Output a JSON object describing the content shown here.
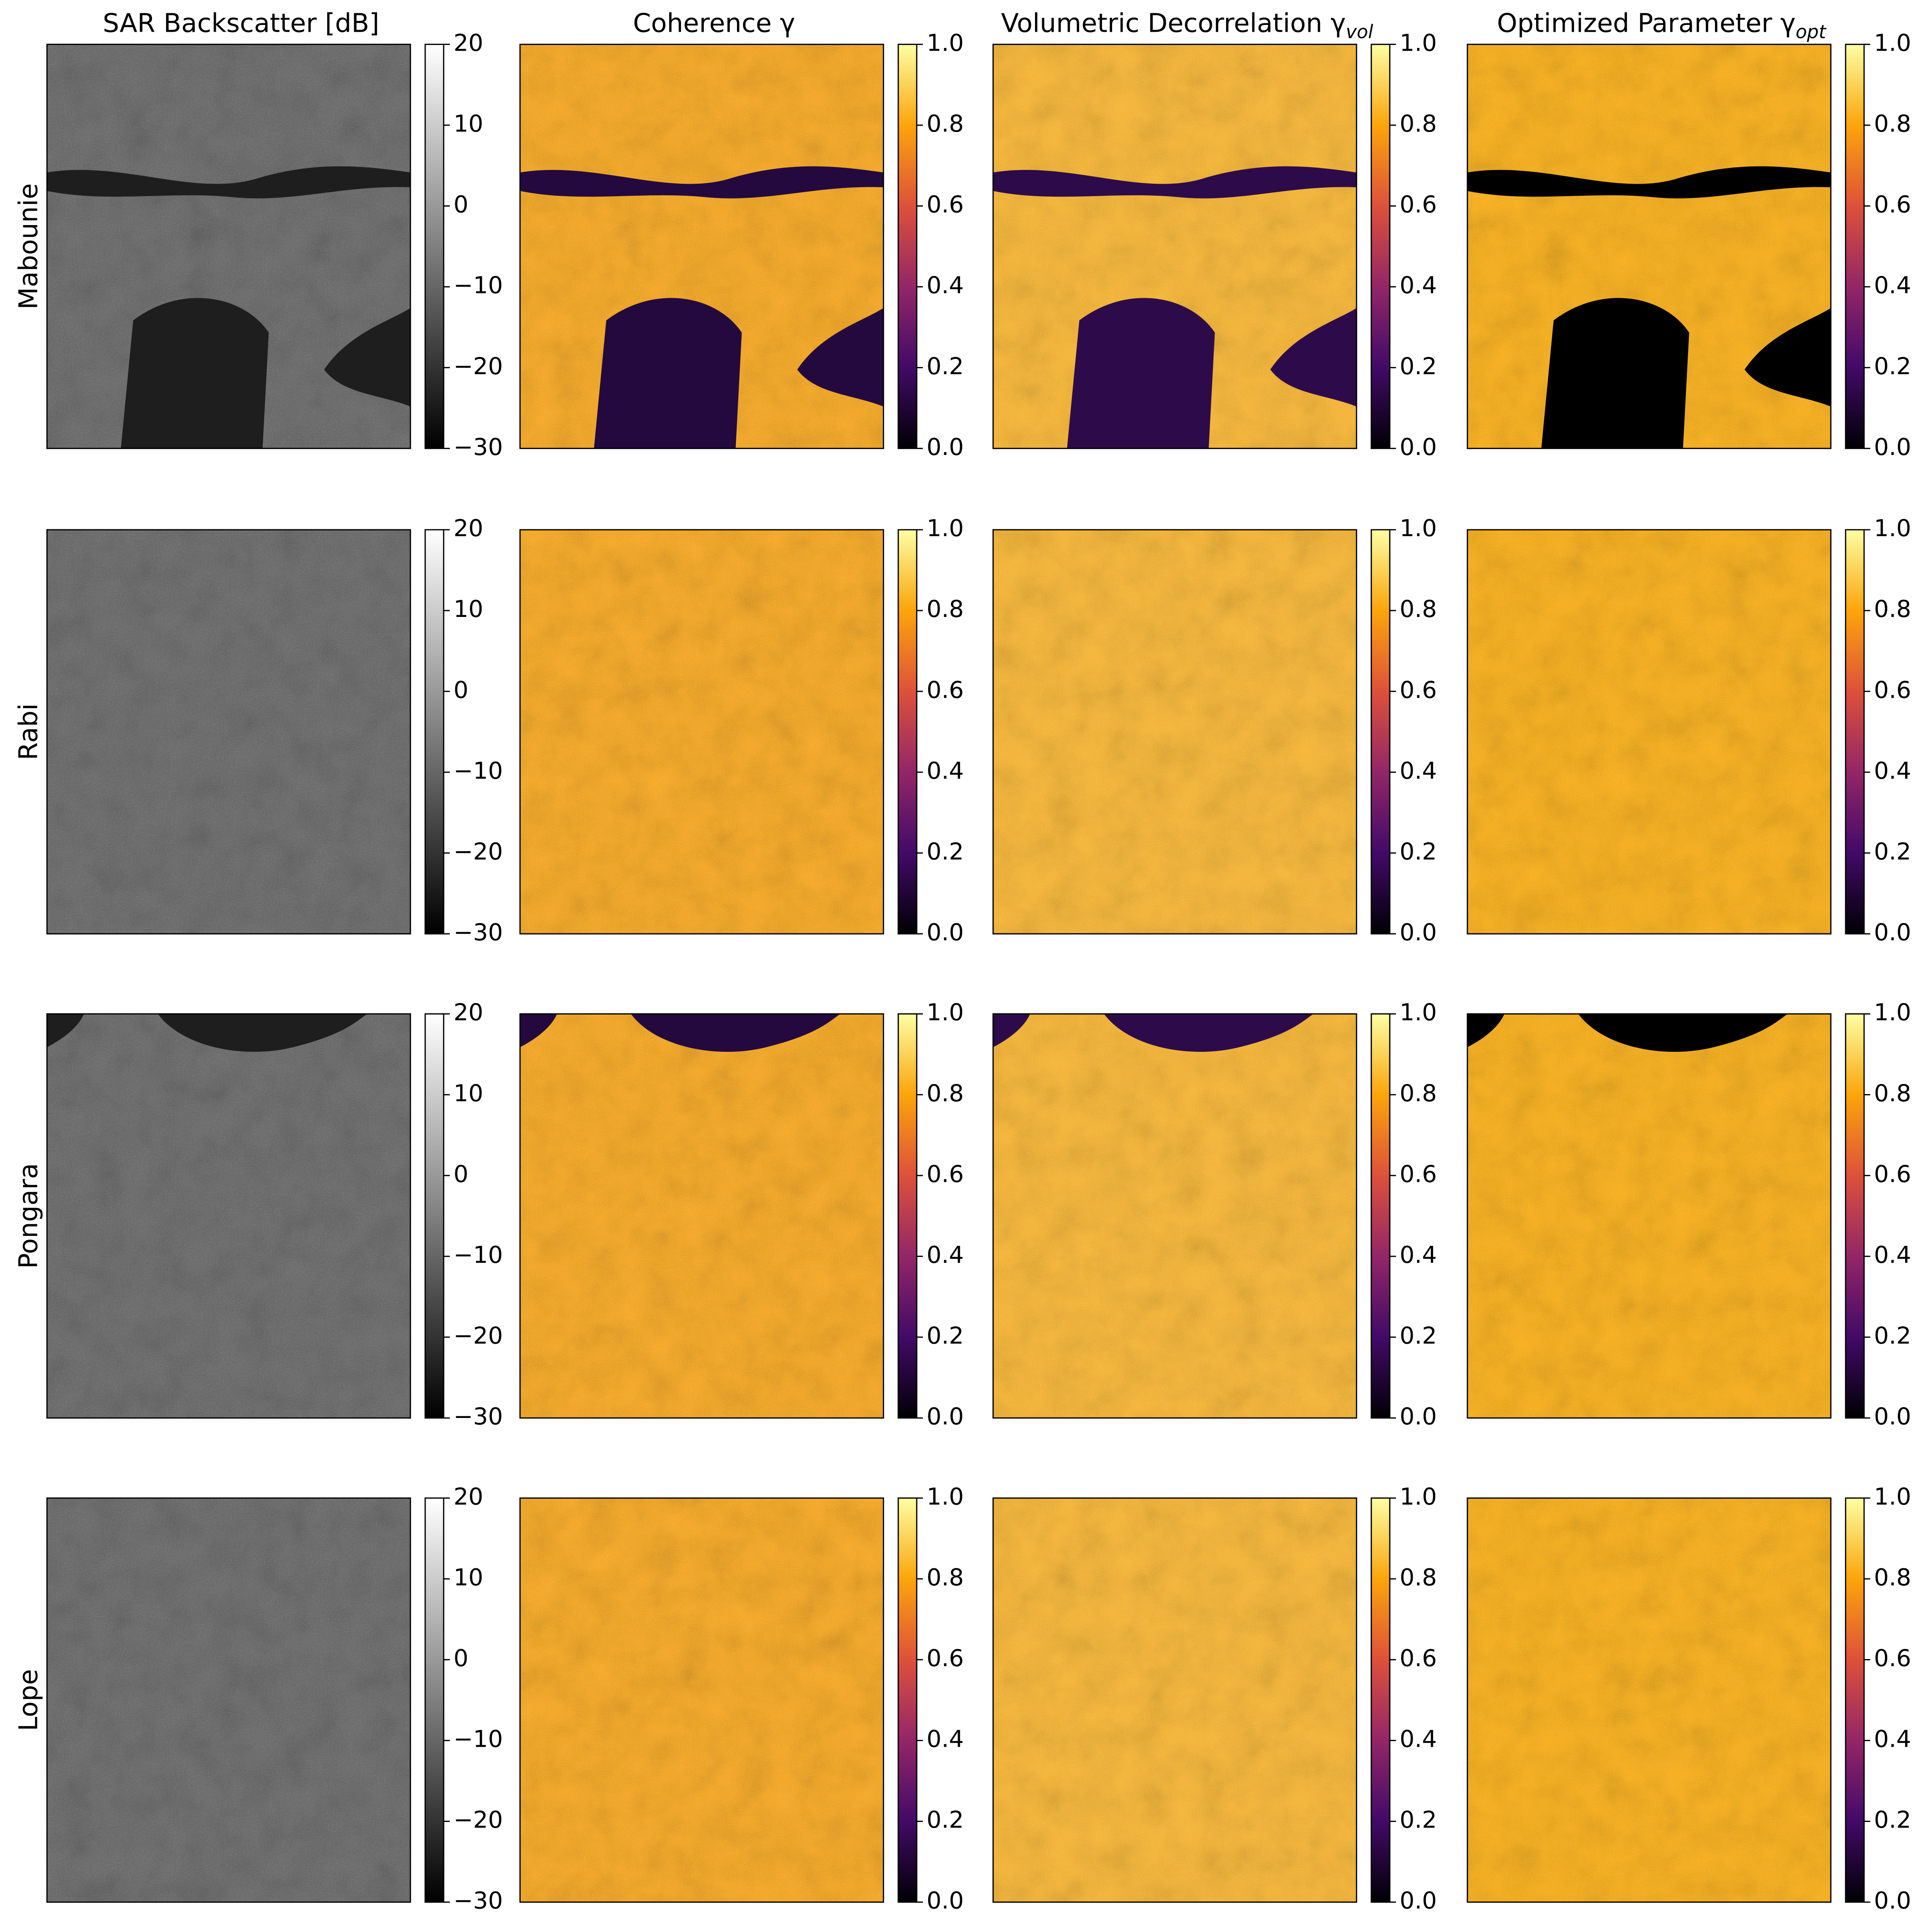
{
  "figure": {
    "rows": [
      "Mabounie",
      "Rabi",
      "Pongara",
      "Lope"
    ],
    "columns": [
      {
        "title": "SAR Backscatter [dB]",
        "base": "#6a6a6a",
        "dark": "#1e1e1e",
        "colorbar": {
          "colormap": [
            "#000000",
            "#ffffff"
          ],
          "lim": [
            -30,
            20
          ],
          "ticks": [
            {
              "value": -30,
              "label": "−30"
            },
            {
              "value": -20,
              "label": "−20"
            },
            {
              "value": -10,
              "label": "−10"
            },
            0,
            10,
            20
          ]
        }
      },
      {
        "title": "Coherence γ",
        "base": "#f6a62a",
        "dark": "#24093f",
        "colorbar": {
          "colormap": [
            "#000004",
            "#420a68",
            "#932667",
            "#dd513a",
            "#fca50a",
            "#fcffa4"
          ],
          "lim": [
            0,
            1
          ],
          "ticks": [
            {
              "value": 0,
              "label": "0.0"
            },
            0.2,
            0.4,
            0.6,
            0.8,
            {
              "value": 1,
              "label": "1.0"
            }
          ]
        }
      },
      {
        "title": "Volumetric Decorrelation γ",
        "subscript": "vol",
        "base": "#f7b43a",
        "dark": "#2d0b4a",
        "colorbar": {
          "colormap": [
            "#000004",
            "#420a68",
            "#932667",
            "#dd513a",
            "#fca50a",
            "#fcffa4"
          ],
          "lim": [
            0,
            1
          ],
          "ticks": [
            {
              "value": 0,
              "label": "0.0"
            },
            0.2,
            0.4,
            0.6,
            0.8,
            {
              "value": 1,
              "label": "1.0"
            }
          ]
        }
      },
      {
        "title": "Optimized Parameter γ",
        "subscript": "opt",
        "base": "#f8ad22",
        "dark": "#000000",
        "colorbar": {
          "colormap": [
            "#000004",
            "#420a68",
            "#932667",
            "#dd513a",
            "#fca50a",
            "#fcffa4"
          ],
          "lim": [
            0,
            1
          ],
          "ticks": [
            {
              "value": 0,
              "label": "0.0"
            },
            0.2,
            0.4,
            0.6,
            0.8,
            {
              "value": 1,
              "label": "1.0"
            }
          ]
        }
      }
    ]
  }
}
